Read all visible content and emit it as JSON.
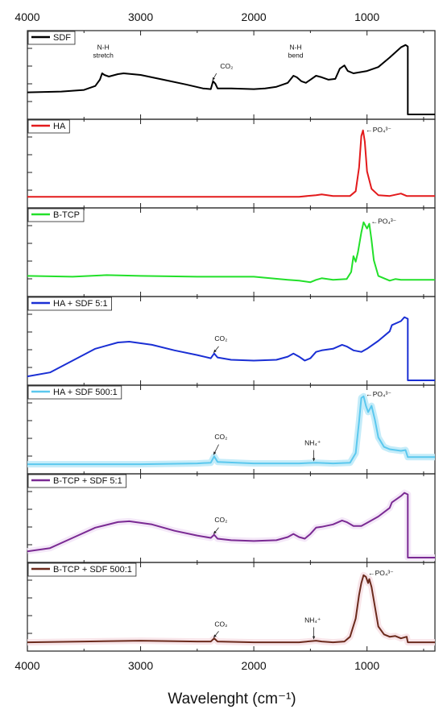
{
  "chart_data": {
    "type": "line",
    "xlabel": "Wavelenght (cm⁻¹)",
    "xlim": [
      4000,
      400
    ],
    "x_reversed": true,
    "x_ticks": [
      4000,
      3000,
      2000,
      1000
    ],
    "x_tick_labels": [
      "4000",
      "3000",
      "2000",
      "1000"
    ],
    "ylim": [
      0,
      1
    ],
    "grid": false,
    "legend_placement": "top-left",
    "panels": [
      {
        "name": "SDF",
        "color": "#000000",
        "points": [
          [
            4000,
            0.28
          ],
          [
            3700,
            0.29
          ],
          [
            3500,
            0.31
          ],
          [
            3400,
            0.36
          ],
          [
            3360,
            0.44
          ],
          [
            3340,
            0.52
          ],
          [
            3320,
            0.5
          ],
          [
            3280,
            0.48
          ],
          [
            3200,
            0.51
          ],
          [
            3150,
            0.52
          ],
          [
            3000,
            0.5
          ],
          [
            2800,
            0.44
          ],
          [
            2600,
            0.38
          ],
          [
            2450,
            0.33
          ],
          [
            2380,
            0.32
          ],
          [
            2360,
            0.42
          ],
          [
            2340,
            0.39
          ],
          [
            2320,
            0.33
          ],
          [
            2200,
            0.33
          ],
          [
            2000,
            0.32
          ],
          [
            1900,
            0.33
          ],
          [
            1800,
            0.35
          ],
          [
            1700,
            0.4
          ],
          [
            1650,
            0.49
          ],
          [
            1620,
            0.47
          ],
          [
            1580,
            0.42
          ],
          [
            1540,
            0.4
          ],
          [
            1500,
            0.44
          ],
          [
            1450,
            0.49
          ],
          [
            1400,
            0.47
          ],
          [
            1340,
            0.44
          ],
          [
            1280,
            0.45
          ],
          [
            1240,
            0.58
          ],
          [
            1200,
            0.62
          ],
          [
            1170,
            0.55
          ],
          [
            1120,
            0.52
          ],
          [
            1000,
            0.55
          ],
          [
            900,
            0.6
          ],
          [
            800,
            0.72
          ],
          [
            700,
            0.85
          ],
          [
            660,
            0.88
          ],
          [
            640,
            0.86
          ],
          [
            640,
            0.0
          ],
          [
            400,
            0.0
          ]
        ]
      },
      {
        "name": "HA",
        "color": "#e31a1c",
        "points": [
          [
            4000,
            0.08
          ],
          [
            3000,
            0.08
          ],
          [
            2000,
            0.08
          ],
          [
            1600,
            0.08
          ],
          [
            1450,
            0.1
          ],
          [
            1400,
            0.11
          ],
          [
            1300,
            0.09
          ],
          [
            1150,
            0.09
          ],
          [
            1100,
            0.15
          ],
          [
            1070,
            0.45
          ],
          [
            1050,
            0.85
          ],
          [
            1035,
            0.92
          ],
          [
            1020,
            0.78
          ],
          [
            1000,
            0.4
          ],
          [
            960,
            0.18
          ],
          [
            900,
            0.1
          ],
          [
            800,
            0.09
          ],
          [
            700,
            0.12
          ],
          [
            650,
            0.09
          ],
          [
            400,
            0.09
          ]
        ]
      },
      {
        "name": "B-TCP",
        "color": "#22e02a",
        "points": [
          [
            4000,
            0.2
          ],
          [
            3600,
            0.19
          ],
          [
            3300,
            0.21
          ],
          [
            3000,
            0.2
          ],
          [
            2500,
            0.19
          ],
          [
            2000,
            0.19
          ],
          [
            1700,
            0.15
          ],
          [
            1600,
            0.14
          ],
          [
            1500,
            0.12
          ],
          [
            1450,
            0.15
          ],
          [
            1400,
            0.17
          ],
          [
            1300,
            0.15
          ],
          [
            1180,
            0.16
          ],
          [
            1140,
            0.25
          ],
          [
            1120,
            0.45
          ],
          [
            1100,
            0.38
          ],
          [
            1080,
            0.5
          ],
          [
            1050,
            0.75
          ],
          [
            1030,
            0.88
          ],
          [
            1000,
            0.8
          ],
          [
            980,
            0.86
          ],
          [
            960,
            0.65
          ],
          [
            940,
            0.4
          ],
          [
            900,
            0.2
          ],
          [
            800,
            0.14
          ],
          [
            750,
            0.16
          ],
          [
            700,
            0.15
          ],
          [
            650,
            0.15
          ],
          [
            400,
            0.15
          ]
        ]
      },
      {
        "name": "HA + SDF 5:1",
        "color": "#1a2fd4",
        "points": [
          [
            4000,
            0.05
          ],
          [
            3800,
            0.1
          ],
          [
            3600,
            0.25
          ],
          [
            3400,
            0.4
          ],
          [
            3200,
            0.48
          ],
          [
            3100,
            0.49
          ],
          [
            2900,
            0.45
          ],
          [
            2700,
            0.38
          ],
          [
            2500,
            0.32
          ],
          [
            2380,
            0.28
          ],
          [
            2350,
            0.34
          ],
          [
            2320,
            0.29
          ],
          [
            2200,
            0.26
          ],
          [
            2000,
            0.25
          ],
          [
            1800,
            0.26
          ],
          [
            1700,
            0.3
          ],
          [
            1650,
            0.34
          ],
          [
            1600,
            0.3
          ],
          [
            1550,
            0.25
          ],
          [
            1500,
            0.28
          ],
          [
            1450,
            0.36
          ],
          [
            1400,
            0.38
          ],
          [
            1300,
            0.4
          ],
          [
            1220,
            0.45
          ],
          [
            1180,
            0.43
          ],
          [
            1120,
            0.38
          ],
          [
            1050,
            0.36
          ],
          [
            1000,
            0.4
          ],
          [
            900,
            0.5
          ],
          [
            800,
            0.62
          ],
          [
            780,
            0.7
          ],
          [
            700,
            0.75
          ],
          [
            670,
            0.8
          ],
          [
            640,
            0.78
          ],
          [
            640,
            0.0
          ],
          [
            400,
            0.0
          ]
        ]
      },
      {
        "name": "HA + SDF 500:1",
        "color": "#5bc8ee",
        "band_color": "#bfeaf8",
        "points": [
          [
            4000,
            0.06
          ],
          [
            3000,
            0.06
          ],
          [
            2500,
            0.07
          ],
          [
            2380,
            0.08
          ],
          [
            2350,
            0.16
          ],
          [
            2320,
            0.09
          ],
          [
            2000,
            0.07
          ],
          [
            1600,
            0.07
          ],
          [
            1450,
            0.08
          ],
          [
            1300,
            0.07
          ],
          [
            1150,
            0.08
          ],
          [
            1100,
            0.2
          ],
          [
            1070,
            0.6
          ],
          [
            1050,
            0.9
          ],
          [
            1030,
            0.92
          ],
          [
            1010,
            0.8
          ],
          [
            990,
            0.72
          ],
          [
            960,
            0.8
          ],
          [
            930,
            0.62
          ],
          [
            900,
            0.4
          ],
          [
            850,
            0.28
          ],
          [
            800,
            0.25
          ],
          [
            750,
            0.24
          ],
          [
            700,
            0.23
          ],
          [
            660,
            0.24
          ],
          [
            640,
            0.15
          ],
          [
            400,
            0.15
          ]
        ]
      },
      {
        "name": "B-TCP + SDF 5:1",
        "color": "#7a2a93",
        "band_color": "#f3e6f7",
        "points": [
          [
            4000,
            0.08
          ],
          [
            3800,
            0.12
          ],
          [
            3600,
            0.25
          ],
          [
            3400,
            0.38
          ],
          [
            3200,
            0.45
          ],
          [
            3100,
            0.46
          ],
          [
            2900,
            0.42
          ],
          [
            2700,
            0.34
          ],
          [
            2500,
            0.28
          ],
          [
            2380,
            0.25
          ],
          [
            2350,
            0.29
          ],
          [
            2320,
            0.24
          ],
          [
            2200,
            0.22
          ],
          [
            2000,
            0.21
          ],
          [
            1800,
            0.22
          ],
          [
            1700,
            0.26
          ],
          [
            1650,
            0.3
          ],
          [
            1600,
            0.26
          ],
          [
            1550,
            0.24
          ],
          [
            1500,
            0.3
          ],
          [
            1450,
            0.38
          ],
          [
            1400,
            0.39
          ],
          [
            1300,
            0.42
          ],
          [
            1220,
            0.47
          ],
          [
            1180,
            0.45
          ],
          [
            1120,
            0.4
          ],
          [
            1050,
            0.4
          ],
          [
            1000,
            0.44
          ],
          [
            900,
            0.52
          ],
          [
            800,
            0.63
          ],
          [
            780,
            0.7
          ],
          [
            700,
            0.78
          ],
          [
            670,
            0.82
          ],
          [
            640,
            0.8
          ],
          [
            640,
            0.0
          ],
          [
            400,
            0.0
          ]
        ]
      },
      {
        "name": "B-TCP + SDF 500:1",
        "color": "#6b2a1c",
        "band_color": "#f7e2e7",
        "points": [
          [
            4000,
            0.05
          ],
          [
            3500,
            0.06
          ],
          [
            3000,
            0.07
          ],
          [
            2500,
            0.06
          ],
          [
            2380,
            0.06
          ],
          [
            2350,
            0.1
          ],
          [
            2320,
            0.06
          ],
          [
            2000,
            0.05
          ],
          [
            1600,
            0.05
          ],
          [
            1450,
            0.07
          ],
          [
            1400,
            0.06
          ],
          [
            1300,
            0.05
          ],
          [
            1200,
            0.06
          ],
          [
            1150,
            0.12
          ],
          [
            1100,
            0.35
          ],
          [
            1070,
            0.65
          ],
          [
            1050,
            0.8
          ],
          [
            1030,
            0.9
          ],
          [
            1010,
            0.88
          ],
          [
            990,
            0.8
          ],
          [
            980,
            0.85
          ],
          [
            960,
            0.75
          ],
          [
            930,
            0.5
          ],
          [
            900,
            0.25
          ],
          [
            850,
            0.15
          ],
          [
            800,
            0.12
          ],
          [
            750,
            0.13
          ],
          [
            700,
            0.1
          ],
          [
            650,
            0.12
          ],
          [
            640,
            0.05
          ],
          [
            400,
            0.05
          ]
        ]
      }
    ],
    "annotations": [
      {
        "panel": 0,
        "text": "N-H",
        "x": 3330,
        "y": 0.82,
        "arrow_to": null
      },
      {
        "panel": 0,
        "text": "stretch",
        "x": 3330,
        "y": 0.72,
        "arrow_to": null
      },
      {
        "panel": 0,
        "text": "CO₂",
        "x": 2240,
        "y": 0.58,
        "arrow_from": [
          2330,
          0.52
        ],
        "arrow_to": [
          2365,
          0.43
        ]
      },
      {
        "panel": 0,
        "text": "N-H",
        "x": 1630,
        "y": 0.82,
        "arrow_to": null
      },
      {
        "panel": 0,
        "text": "bend",
        "x": 1630,
        "y": 0.72,
        "arrow_to": null
      },
      {
        "panel": 1,
        "text": "←PO₄³⁻",
        "x": 1010,
        "y": 0.9,
        "arrow_to": null
      },
      {
        "panel": 2,
        "text": "←PO₄³⁻",
        "x": 965,
        "y": 0.86,
        "arrow_to": null
      },
      {
        "panel": 3,
        "text": "CO₂",
        "x": 2290,
        "y": 0.5,
        "arrow_from": [
          2310,
          0.43
        ],
        "arrow_to": [
          2355,
          0.35
        ]
      },
      {
        "panel": 4,
        "text": "←PO₄³⁻",
        "x": 1010,
        "y": 0.92,
        "arrow_to": null
      },
      {
        "panel": 4,
        "text": "CO₂",
        "x": 2290,
        "y": 0.38,
        "arrow_from": [
          2310,
          0.31
        ],
        "arrow_to": [
          2355,
          0.18
        ]
      },
      {
        "panel": 4,
        "text": "NH₄⁺",
        "x": 1480,
        "y": 0.3,
        "arrow_from": [
          1470,
          0.24
        ],
        "arrow_to": [
          1470,
          0.1
        ]
      },
      {
        "panel": 5,
        "text": "CO₂",
        "x": 2290,
        "y": 0.45,
        "arrow_from": [
          2310,
          0.38
        ],
        "arrow_to": [
          2355,
          0.3
        ]
      },
      {
        "panel": 6,
        "text": "←PO₄³⁻",
        "x": 990,
        "y": 0.9,
        "arrow_to": null
      },
      {
        "panel": 6,
        "text": "CO₂",
        "x": 2290,
        "y": 0.25,
        "arrow_from": [
          2310,
          0.19
        ],
        "arrow_to": [
          2355,
          0.11
        ]
      },
      {
        "panel": 6,
        "text": "NH₄⁺",
        "x": 1480,
        "y": 0.3,
        "arrow_from": [
          1470,
          0.24
        ],
        "arrow_to": [
          1470,
          0.09
        ]
      }
    ]
  }
}
